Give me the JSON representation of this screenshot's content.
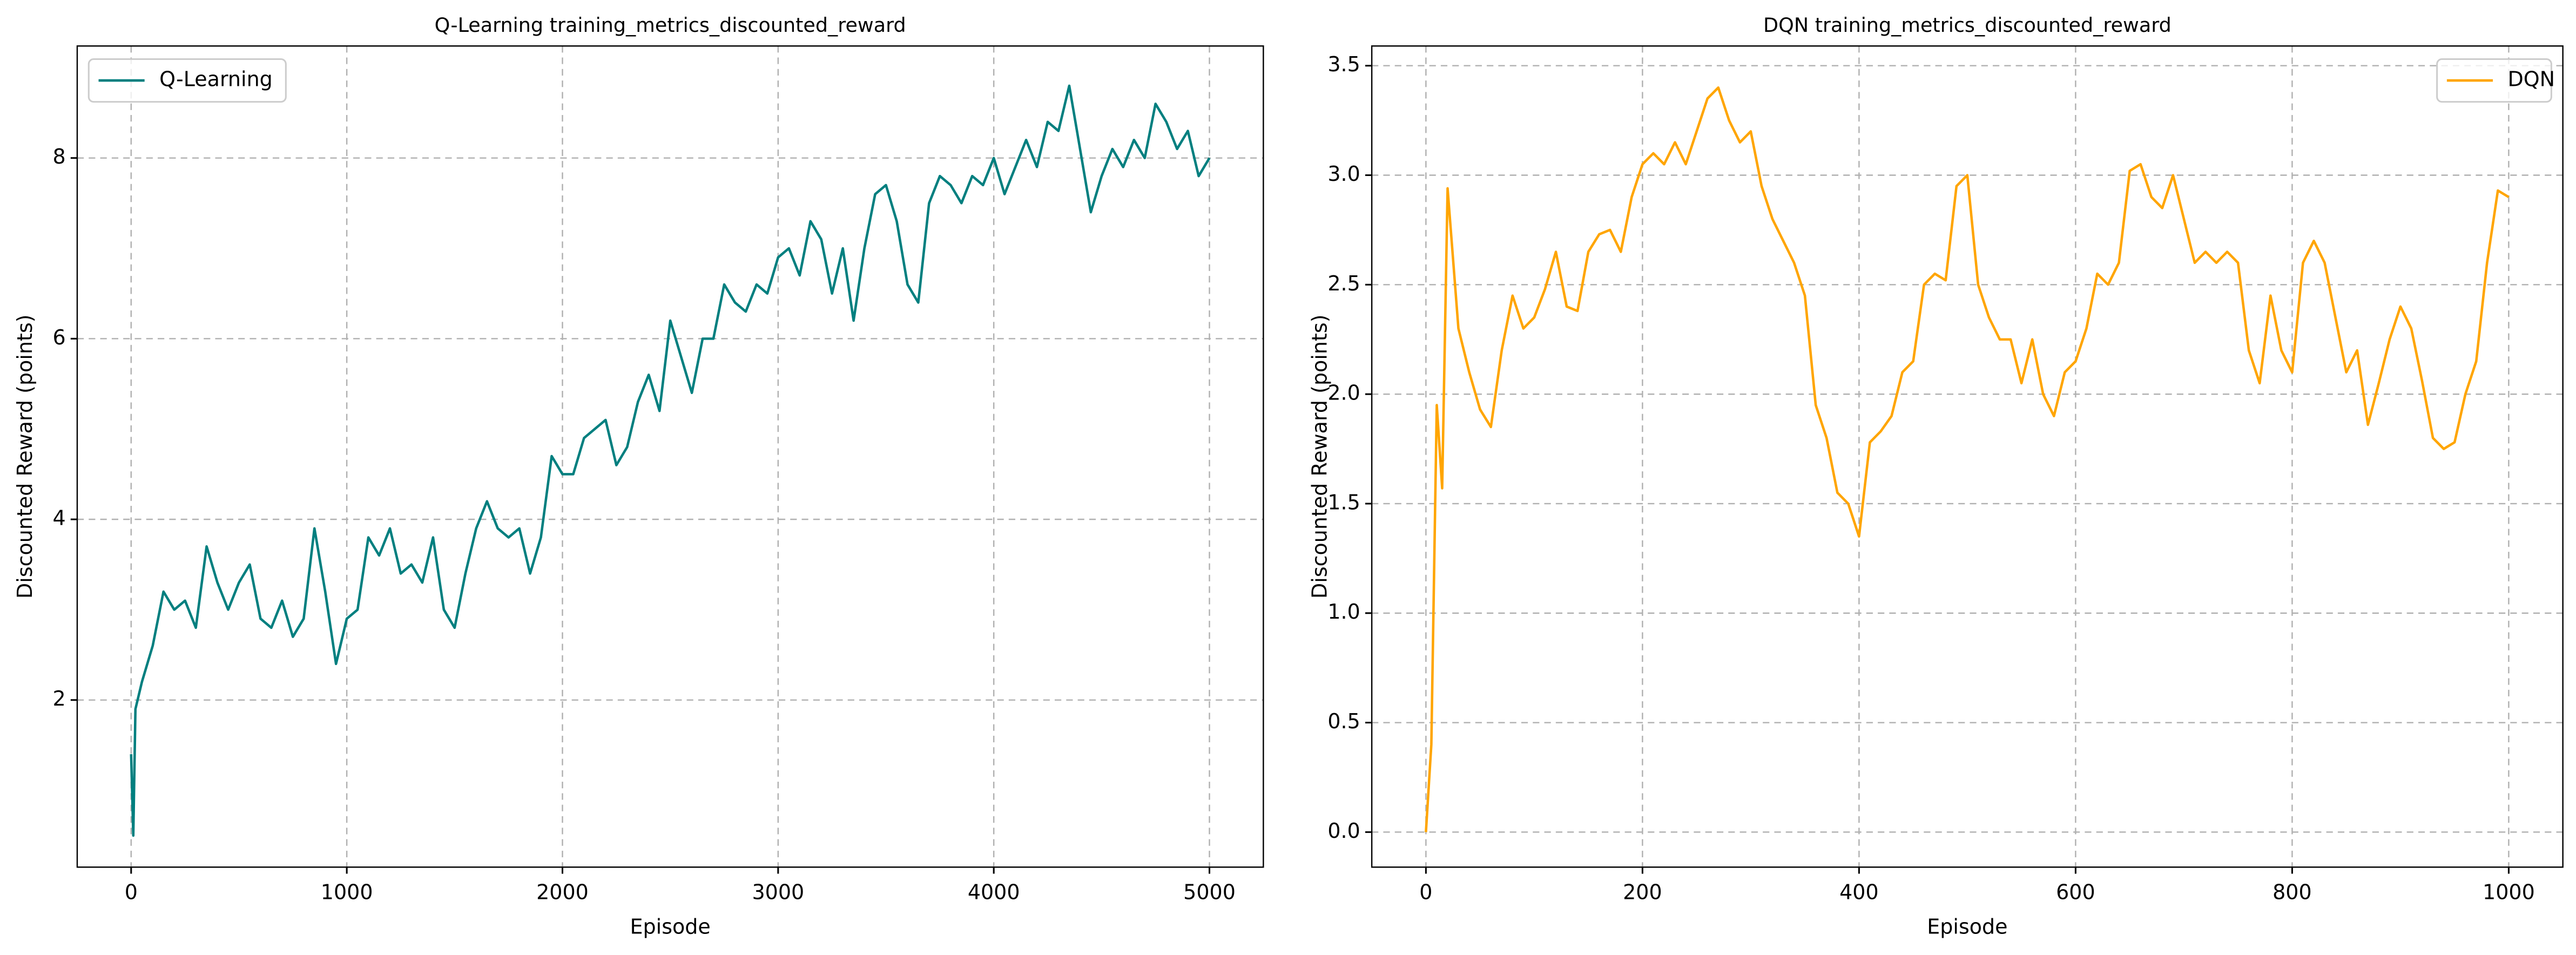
{
  "chart_data": [
    {
      "type": "line",
      "title": "Q-Learning training_metrics_discounted_reward",
      "xlabel": "Episode",
      "ylabel": "Discounted Reward (points)",
      "x": [
        0,
        10,
        20,
        50,
        100,
        150,
        200,
        250,
        300,
        350,
        400,
        450,
        500,
        550,
        600,
        650,
        700,
        750,
        800,
        850,
        900,
        950,
        1000,
        1050,
        1100,
        1150,
        1200,
        1250,
        1300,
        1350,
        1400,
        1450,
        1500,
        1550,
        1600,
        1650,
        1700,
        1750,
        1800,
        1850,
        1900,
        1950,
        2000,
        2050,
        2100,
        2150,
        2200,
        2250,
        2300,
        2350,
        2400,
        2450,
        2500,
        2550,
        2600,
        2650,
        2700,
        2750,
        2800,
        2850,
        2900,
        2950,
        3000,
        3050,
        3100,
        3150,
        3200,
        3250,
        3300,
        3350,
        3400,
        3450,
        3500,
        3550,
        3600,
        3650,
        3700,
        3750,
        3800,
        3850,
        3900,
        3950,
        4000,
        4050,
        4100,
        4150,
        4200,
        4250,
        4300,
        4350,
        4400,
        4450,
        4500,
        4550,
        4600,
        4650,
        4700,
        4750,
        4800,
        4850,
        4900,
        4950,
        5000
      ],
      "series": [
        {
          "name": "Q-Learning",
          "color": "#007f7f",
          "values": [
            1.4,
            0.5,
            1.9,
            2.2,
            2.6,
            3.2,
            3.0,
            3.1,
            2.8,
            3.7,
            3.3,
            3.0,
            3.3,
            3.5,
            2.9,
            2.8,
            3.1,
            2.7,
            2.9,
            3.9,
            3.2,
            2.4,
            2.9,
            3.0,
            3.8,
            3.6,
            3.9,
            3.4,
            3.5,
            3.3,
            3.8,
            3.0,
            2.8,
            3.4,
            3.9,
            4.2,
            3.9,
            3.8,
            3.9,
            3.4,
            3.8,
            4.7,
            4.5,
            4.5,
            4.9,
            5.0,
            5.1,
            4.6,
            4.8,
            5.3,
            5.6,
            5.2,
            6.2,
            5.8,
            5.4,
            6.0,
            6.0,
            6.6,
            6.4,
            6.3,
            6.6,
            6.5,
            6.9,
            7.0,
            6.7,
            7.3,
            7.1,
            6.5,
            7.0,
            6.2,
            7.0,
            7.6,
            7.7,
            7.3,
            6.6,
            6.4,
            7.5,
            7.8,
            7.7,
            7.5,
            7.8,
            7.7,
            8.0,
            7.6,
            7.9,
            8.2,
            7.9,
            8.4,
            8.3,
            8.8,
            8.1,
            7.4,
            7.8,
            8.1,
            7.9,
            8.2,
            8.0,
            8.6,
            8.4,
            8.1,
            8.3,
            7.8,
            8.0
          ]
        }
      ],
      "xlim": [
        -250,
        5250
      ],
      "ylim": [
        0.15,
        9.24
      ],
      "xticks": [
        0,
        1000,
        2000,
        3000,
        4000,
        5000
      ],
      "yticks": [
        2,
        4,
        6,
        8
      ],
      "grid": true,
      "legend": "upper left"
    },
    {
      "type": "line",
      "title": "DQN training_metrics_discounted_reward",
      "xlabel": "Episode",
      "ylabel": "Discounted Reward (points)",
      "x": [
        0,
        5,
        10,
        15,
        20,
        30,
        40,
        50,
        60,
        70,
        80,
        90,
        100,
        110,
        120,
        130,
        140,
        150,
        160,
        170,
        180,
        190,
        200,
        210,
        220,
        230,
        240,
        250,
        260,
        270,
        280,
        290,
        300,
        310,
        320,
        330,
        340,
        350,
        360,
        370,
        380,
        390,
        400,
        410,
        420,
        430,
        440,
        450,
        460,
        470,
        480,
        490,
        500,
        510,
        520,
        530,
        540,
        550,
        560,
        570,
        580,
        590,
        600,
        610,
        620,
        630,
        640,
        650,
        660,
        670,
        680,
        690,
        700,
        710,
        720,
        730,
        740,
        750,
        760,
        770,
        780,
        790,
        800,
        810,
        820,
        830,
        840,
        850,
        860,
        870,
        880,
        890,
        900,
        910,
        920,
        930,
        940,
        950,
        960,
        970,
        980,
        990,
        1000
      ],
      "series": [
        {
          "name": "DQN",
          "color": "#ffa500",
          "values": [
            0.0,
            0.4,
            1.95,
            1.57,
            2.94,
            2.3,
            2.1,
            1.93,
            1.85,
            2.2,
            2.45,
            2.3,
            2.35,
            2.48,
            2.65,
            2.4,
            2.38,
            2.65,
            2.73,
            2.75,
            2.65,
            2.9,
            3.05,
            3.1,
            3.05,
            3.15,
            3.05,
            3.2,
            3.35,
            3.4,
            3.25,
            3.15,
            3.2,
            2.95,
            2.8,
            2.7,
            2.6,
            2.45,
            1.95,
            1.8,
            1.55,
            1.5,
            1.35,
            1.78,
            1.83,
            1.9,
            2.1,
            2.15,
            2.5,
            2.55,
            2.52,
            2.95,
            3.0,
            2.5,
            2.35,
            2.25,
            2.25,
            2.05,
            2.25,
            2.0,
            1.9,
            2.1,
            2.15,
            2.3,
            2.55,
            2.5,
            2.6,
            3.02,
            3.05,
            2.9,
            2.85,
            3.0,
            2.8,
            2.6,
            2.65,
            2.6,
            2.65,
            2.6,
            2.2,
            2.05,
            2.45,
            2.2,
            2.1,
            2.6,
            2.7,
            2.6,
            2.35,
            2.1,
            2.2,
            1.86,
            2.05,
            2.25,
            2.4,
            2.3,
            2.06,
            1.8,
            1.75,
            1.78,
            2.0,
            2.15,
            2.6,
            2.93,
            2.9
          ]
        }
      ],
      "xlim": [
        -50,
        1050
      ],
      "ylim": [
        -0.16,
        3.59
      ],
      "xticks": [
        0,
        200,
        400,
        600,
        800,
        1000
      ],
      "yticks": [
        {
          "value": 0,
          "label": "0.0"
        },
        0.5,
        {
          "value": 1,
          "label": "1.0"
        },
        1.5,
        {
          "value": 2,
          "label": "2.0"
        },
        2.5,
        {
          "value": 3,
          "label": "3.0"
        },
        3.5
      ],
      "grid": true,
      "legend": "upper right"
    }
  ]
}
